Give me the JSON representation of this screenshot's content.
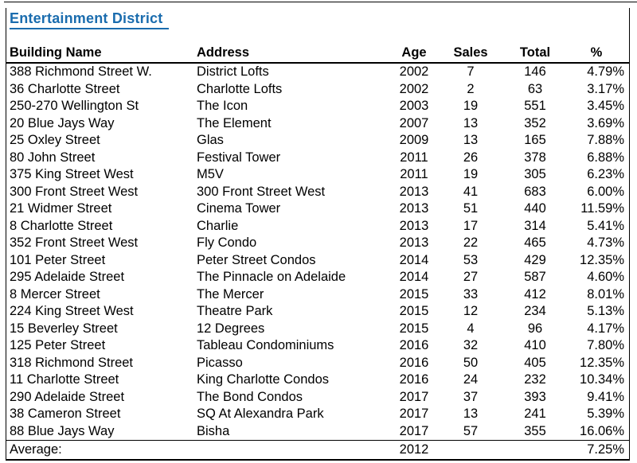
{
  "title": "Entertainment District",
  "colors": {
    "title_blue": "#1a6cae",
    "border": "#000000",
    "background": "#ffffff",
    "text": "#000000"
  },
  "table": {
    "column_keys": [
      "building-name",
      "address",
      "age",
      "sales",
      "total",
      "percent"
    ],
    "columns": [
      "Building Name",
      "Address",
      "Age",
      "Sales",
      "Total",
      "%"
    ],
    "rows": [
      [
        "388 Richmond Street W.",
        "District Lofts",
        "2002",
        "7",
        "146",
        "4.79%"
      ],
      [
        "36 Charlotte Street",
        "Charlotte Lofts",
        "2002",
        "2",
        "63",
        "3.17%"
      ],
      [
        "250-270 Wellington St",
        "The Icon",
        "2003",
        "19",
        "551",
        "3.45%"
      ],
      [
        "20 Blue Jays Way",
        "The Element",
        "2007",
        "13",
        "352",
        "3.69%"
      ],
      [
        "25 Oxley Street",
        "Glas",
        "2009",
        "13",
        "165",
        "7.88%"
      ],
      [
        "80 John Street",
        "Festival Tower",
        "2011",
        "26",
        "378",
        "6.88%"
      ],
      [
        "375 King Street West",
        "M5V",
        "2011",
        "19",
        "305",
        "6.23%"
      ],
      [
        "300 Front Street West",
        "300 Front Street West",
        "2013",
        "41",
        "683",
        "6.00%"
      ],
      [
        "21 Widmer Street",
        "Cinema Tower",
        "2013",
        "51",
        "440",
        "11.59%"
      ],
      [
        "8 Charlotte Street",
        "Charlie",
        "2013",
        "17",
        "314",
        "5.41%"
      ],
      [
        "352 Front Street West",
        "Fly Condo",
        "2013",
        "22",
        "465",
        "4.73%"
      ],
      [
        "101 Peter Street",
        "Peter Street Condos",
        "2014",
        "53",
        "429",
        "12.35%"
      ],
      [
        "295 Adelaide Street",
        "The Pinnacle on Adelaide",
        "2014",
        "27",
        "587",
        "4.60%"
      ],
      [
        "8 Mercer Street",
        "The Mercer",
        "2015",
        "33",
        "412",
        "8.01%"
      ],
      [
        "224 King Street West",
        "Theatre Park",
        "2015",
        "12",
        "234",
        "5.13%"
      ],
      [
        "15 Beverley Street",
        "12 Degrees",
        "2015",
        "4",
        "96",
        "4.17%"
      ],
      [
        "125 Peter Street",
        "Tableau Condominiums",
        "2016",
        "32",
        "410",
        "7.80%"
      ],
      [
        "318 Richmond Street",
        "Picasso",
        "2016",
        "50",
        "405",
        "12.35%"
      ],
      [
        "11 Charlotte Street",
        "King Charlotte Condos",
        "2016",
        "24",
        "232",
        "10.34%"
      ],
      [
        "290 Adelaide Street",
        "The Bond Condos",
        "2017",
        "37",
        "393",
        "9.41%"
      ],
      [
        "38 Cameron Street",
        "SQ At Alexandra Park",
        "2017",
        "13",
        "241",
        "5.39%"
      ],
      [
        "88 Blue Jays Way",
        "Bisha",
        "2017",
        "57",
        "355",
        "16.06%"
      ]
    ],
    "footer": {
      "label": "Average:",
      "age": "2012",
      "percent": "7.25%"
    }
  }
}
